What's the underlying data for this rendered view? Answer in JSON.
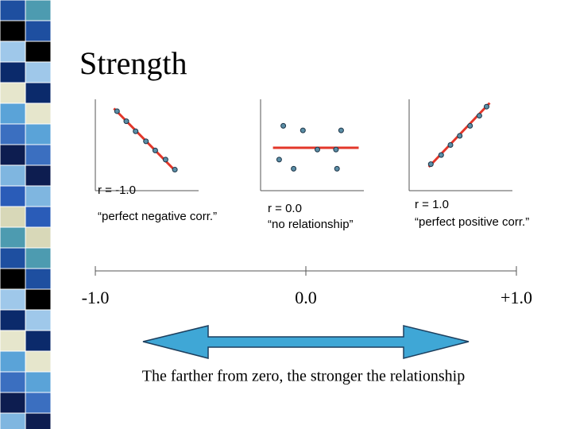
{
  "title": "Strength",
  "chart_data": [
    {
      "type": "scatter",
      "label": "r = -1.0",
      "description": "“perfect negative corr.”",
      "x": [
        2.1,
        3.0,
        3.9,
        4.9,
        5.8,
        6.8,
        7.7
      ],
      "y": [
        8.7,
        7.6,
        6.5,
        5.4,
        4.4,
        3.4,
        2.3
      ],
      "xlim": [
        0,
        10
      ],
      "ylim": [
        0,
        10
      ],
      "color": "#5b8ea6",
      "line_color": "#e3372a",
      "fit_line": {
        "x": [
          1.8,
          7.8
        ],
        "y": [
          9.0,
          2.1
        ]
      }
    },
    {
      "type": "scatter",
      "label": "r = 0.0",
      "description": "“no relationship”",
      "x": [
        2.2,
        4.1,
        7.8,
        5.5,
        7.3,
        1.8,
        3.2,
        7.4
      ],
      "y": [
        7.1,
        6.6,
        6.6,
        4.5,
        4.5,
        3.4,
        2.4,
        2.4
      ],
      "xlim": [
        0,
        10
      ],
      "ylim": [
        0,
        10
      ],
      "color": "#5b8ea6",
      "line_color": "#e3372a",
      "fit_line": {
        "x": [
          1.2,
          9.5
        ],
        "y": [
          4.7,
          4.7
        ]
      }
    },
    {
      "type": "scatter",
      "label": "r = 1.0",
      "description": "“perfect positive corr.”",
      "x": [
        2.1,
        3.1,
        4.0,
        4.9,
        5.9,
        6.8,
        7.5
      ],
      "y": [
        2.9,
        3.9,
        5.0,
        6.0,
        7.1,
        8.2,
        9.2
      ],
      "xlim": [
        0,
        10
      ],
      "ylim": [
        0,
        10
      ],
      "color": "#5b8ea6",
      "line_color": "#e3372a",
      "fit_line": {
        "x": [
          1.9,
          7.8
        ],
        "y": [
          2.6,
          9.6
        ]
      }
    }
  ],
  "scale": {
    "xlim": [
      -1,
      1
    ],
    "ticks": [
      {
        "value": -1,
        "label": "-1.0"
      },
      {
        "value": 0,
        "label": "0.0"
      },
      {
        "value": 1,
        "label": "+1.0"
      }
    ]
  },
  "caption": "The farther from zero, the stronger the relationship"
}
